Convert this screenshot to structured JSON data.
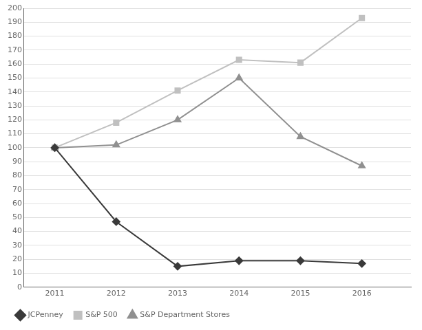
{
  "chart_data": {
    "type": "line",
    "x": [
      2011,
      2012,
      2013,
      2014,
      2015,
      2016
    ],
    "series": [
      {
        "name": "JCPenney",
        "color": "#3a3a3a",
        "marker": "diamond",
        "values": [
          100,
          47,
          15,
          19,
          19,
          17
        ]
      },
      {
        "name": "S&P 500",
        "color": "#c0c0c0",
        "marker": "square",
        "values": [
          100,
          118,
          141,
          163,
          161,
          193
        ]
      },
      {
        "name": "S&P Department Stores",
        "color": "#909090",
        "marker": "triangle",
        "values": [
          100,
          102,
          120,
          150,
          108,
          87
        ]
      }
    ],
    "xlim": [
      2010.5,
      2016.8
    ],
    "xticks": [
      2011,
      2012,
      2013,
      2014,
      2015,
      2016
    ],
    "ylim": [
      0,
      200
    ],
    "yticks": [
      0,
      10,
      20,
      30,
      40,
      50,
      60,
      70,
      80,
      90,
      100,
      110,
      120,
      130,
      140,
      150,
      160,
      170,
      180,
      190,
      200
    ],
    "grid": "y",
    "legend": "bottom"
  }
}
